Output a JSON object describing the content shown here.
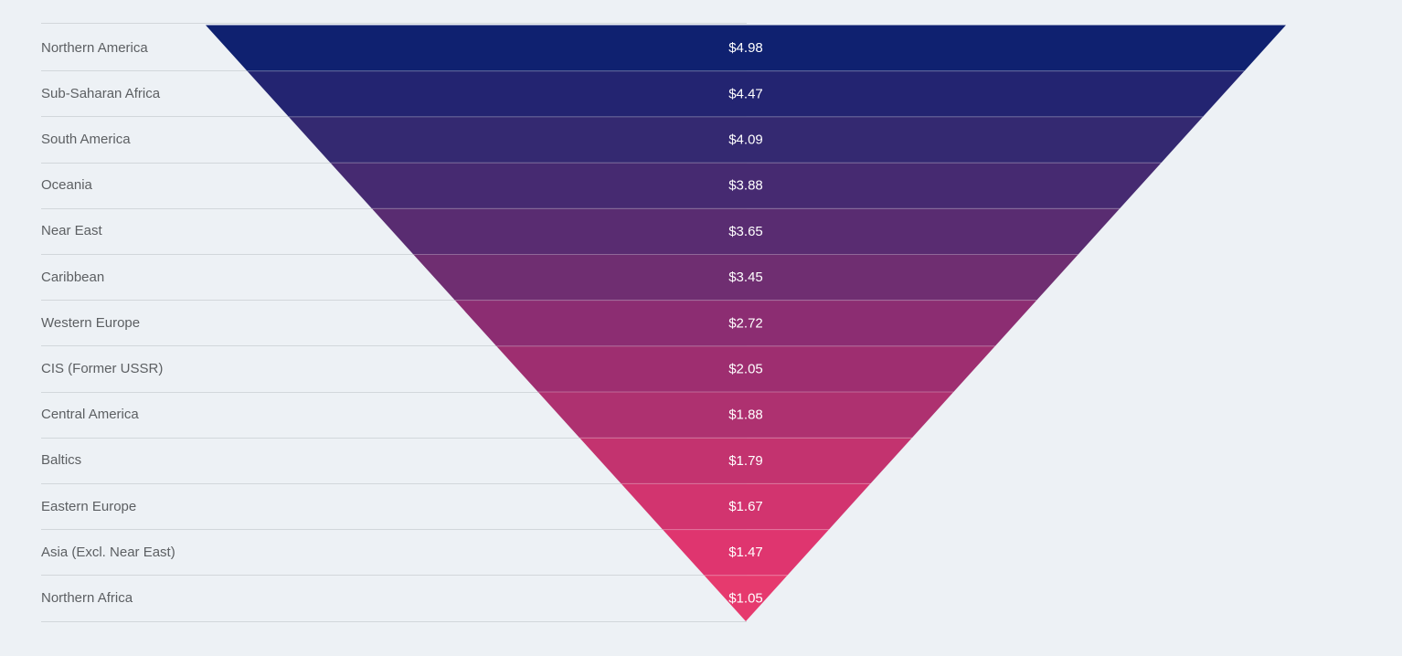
{
  "page": {
    "background_color": "#edf1f5",
    "grid_line_color": "#d2d7db",
    "label_text_color": "#5c5f62",
    "value_text_color": "#ffffff"
  },
  "chart_data": {
    "type": "funnel",
    "subtype": "inverted-pyramid",
    "title": "",
    "xlabel": "",
    "ylabel": "",
    "legend_position": "none",
    "grid": "row-divider-lines",
    "categories": [
      "Northern America",
      "Sub-Saharan Africa",
      "South America",
      "Oceania",
      "Near East",
      "Caribbean",
      "Western Europe",
      "CIS (Former USSR)",
      "Central America",
      "Baltics",
      "Eastern Europe",
      "Asia (Excl. Near East)",
      "Northern Africa"
    ],
    "values": [
      4.98,
      4.47,
      4.09,
      3.88,
      3.65,
      3.45,
      2.72,
      2.05,
      1.88,
      1.79,
      1.67,
      1.47,
      1.05
    ],
    "value_labels": [
      "$4.98",
      "$4.47",
      "$4.09",
      "$3.88",
      "$3.65",
      "$3.45",
      "$2.72",
      "$2.05",
      "$1.88",
      "$1.79",
      "$1.67",
      "$1.47",
      "$1.05"
    ],
    "segment_colors": [
      "#0f2170",
      "#232471",
      "#342971",
      "#462a71",
      "#592c71",
      "#6f2e71",
      "#8c2d72",
      "#9e2e70",
      "#ae3170",
      "#c3336f",
      "#d2346f",
      "#df356f",
      "#e63a6e"
    ]
  }
}
